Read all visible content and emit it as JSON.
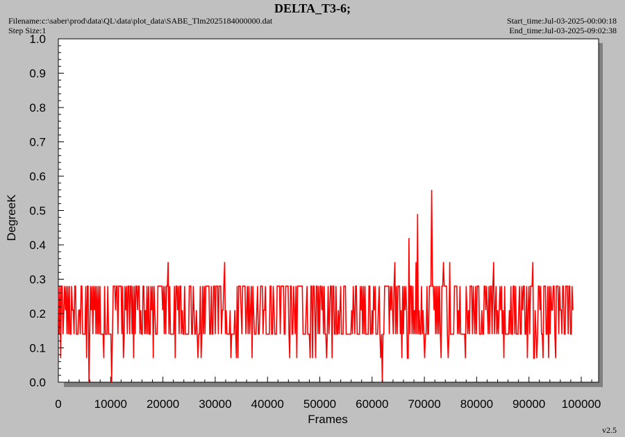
{
  "header": {
    "title": "DELTA_T3-6;",
    "filename": "Filename:c:\\saber\\prod\\data\\QL\\data\\plot_data\\SABE_Tlm2025184000000.dat",
    "step_size": "Step Size:1",
    "start_time": "Start_time:Jul-03-2025-00:00:18",
    "end_time": "End_time:Jul-03-2025-09:02:38",
    "version": "v2.5"
  },
  "colors": {
    "background": "#c0c0c0",
    "plot_area": "#ffffff",
    "shadow": "#808080",
    "series": "#ff0000"
  },
  "chart_data": {
    "type": "line",
    "title": "DELTA_T3-6;",
    "xlabel": "Frames",
    "ylabel": "DegreeK",
    "xlim": [
      0,
      103000
    ],
    "ylim": [
      0,
      1.0
    ],
    "x_ticks": [
      0,
      10000,
      20000,
      30000,
      40000,
      50000,
      60000,
      70000,
      80000,
      90000,
      100000
    ],
    "x_tick_labels": [
      "0",
      "10000",
      "20000",
      "30000",
      "40000",
      "50000",
      "60000",
      "70000",
      "80000",
      "90000",
      "100000"
    ],
    "y_ticks": [
      0.0,
      0.1,
      0.2,
      0.3,
      0.4,
      0.5,
      0.6,
      0.7,
      0.8,
      0.9,
      1.0
    ],
    "y_tick_labels": [
      "0.0",
      "0.1",
      "0.2",
      "0.3",
      "0.4",
      "0.5",
      "0.6",
      "0.7",
      "0.8",
      "0.9",
      "1.0"
    ],
    "grid": false,
    "series": [
      {
        "color": "#ff0000",
        "x_range": [
          0,
          98400
        ],
        "band_levels": [
          0.07,
          0.14,
          0.21,
          0.28
        ],
        "spikes": [
          {
            "x": 21000,
            "y": 0.35
          },
          {
            "x": 31800,
            "y": 0.35
          },
          {
            "x": 64300,
            "y": 0.35
          },
          {
            "x": 67000,
            "y": 0.42
          },
          {
            "x": 68400,
            "y": 0.35
          },
          {
            "x": 68700,
            "y": 0.49
          },
          {
            "x": 71400,
            "y": 0.56
          },
          {
            "x": 73600,
            "y": 0.35
          },
          {
            "x": 74800,
            "y": 0.35
          },
          {
            "x": 83200,
            "y": 0.35
          },
          {
            "x": 90800,
            "y": 0.35
          }
        ],
        "dips": [
          {
            "x": 5900,
            "y": 0.0
          },
          {
            "x": 10200,
            "y": 0.0
          },
          {
            "x": 62000,
            "y": 0.0
          }
        ]
      }
    ]
  }
}
